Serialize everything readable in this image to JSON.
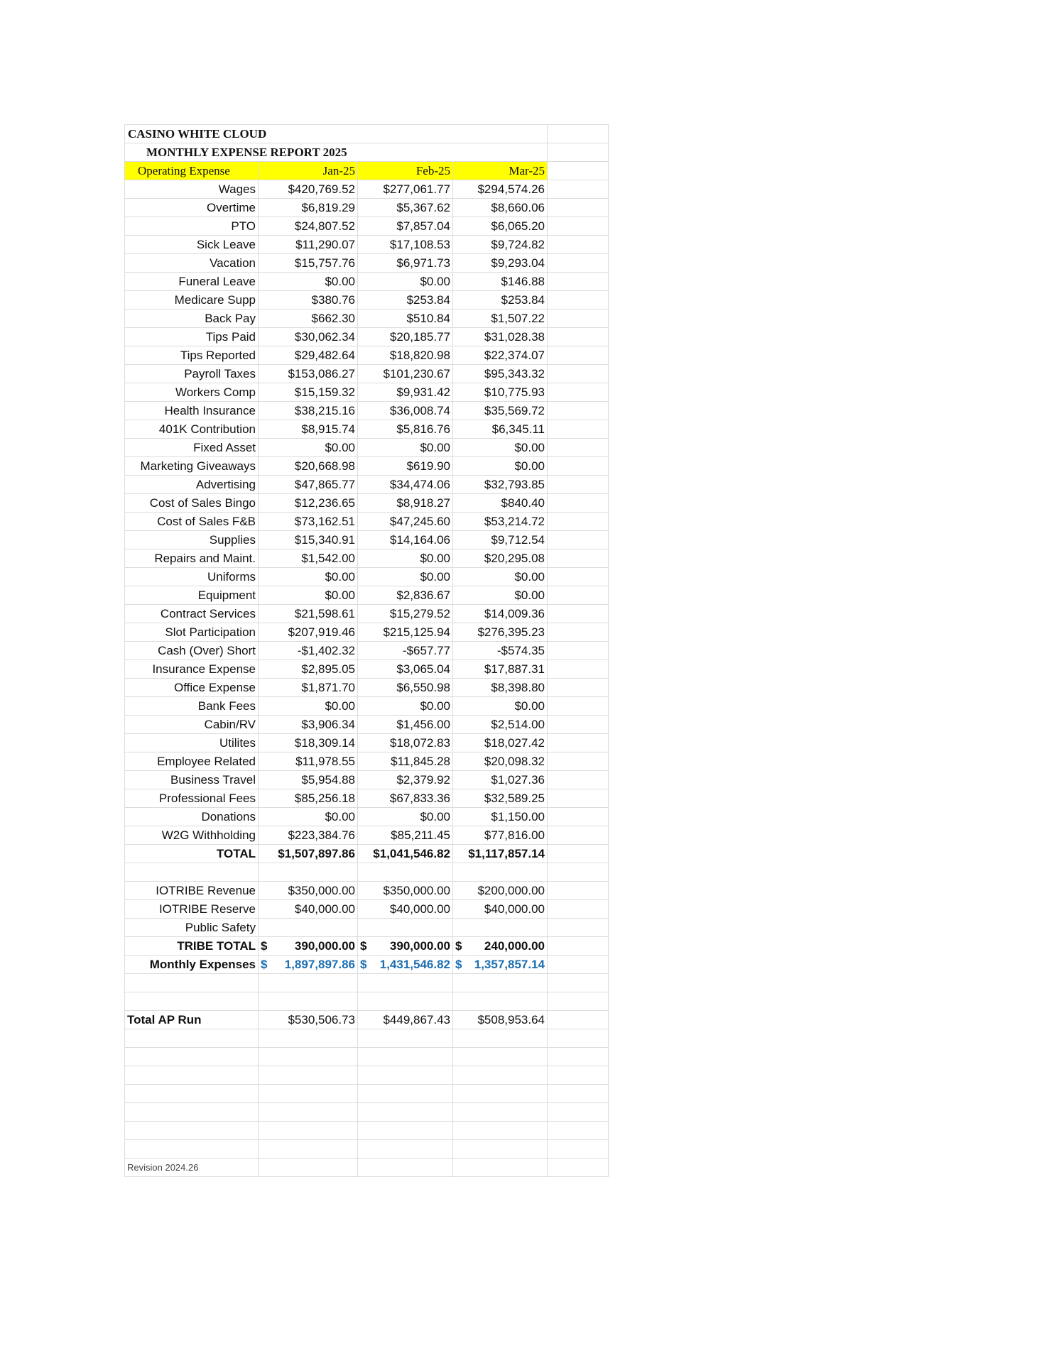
{
  "title": "CASINO WHITE CLOUD",
  "subtitle": "MONTHLY EXPENSE REPORT 2025",
  "header": {
    "label": "Operating Expense",
    "months": [
      "Jan-25",
      "Feb-25",
      "Mar-25"
    ]
  },
  "colors": {
    "header_highlight": "#ffff00",
    "monthly_expenses_text": "#1f6fb0"
  },
  "expenses": [
    {
      "label": "Wages",
      "values": [
        "$420,769.52",
        "$277,061.77",
        "$294,574.26"
      ]
    },
    {
      "label": "Overtime",
      "values": [
        "$6,819.29",
        "$5,367.62",
        "$8,660.06"
      ]
    },
    {
      "label": "PTO",
      "values": [
        "$24,807.52",
        "$7,857.04",
        "$6,065.20"
      ]
    },
    {
      "label": "Sick Leave",
      "values": [
        "$11,290.07",
        "$17,108.53",
        "$9,724.82"
      ]
    },
    {
      "label": "Vacation",
      "values": [
        "$15,757.76",
        "$6,971.73",
        "$9,293.04"
      ]
    },
    {
      "label": "Funeral Leave",
      "values": [
        "$0.00",
        "$0.00",
        "$146.88"
      ]
    },
    {
      "label": "Medicare Supp",
      "values": [
        "$380.76",
        "$253.84",
        "$253.84"
      ]
    },
    {
      "label": "Back Pay",
      "values": [
        "$662.30",
        "$510.84",
        "$1,507.22"
      ]
    },
    {
      "label": "Tips Paid",
      "values": [
        "$30,062.34",
        "$20,185.77",
        "$31,028.38"
      ]
    },
    {
      "label": "Tips Reported",
      "values": [
        "$29,482.64",
        "$18,820.98",
        "$22,374.07"
      ]
    },
    {
      "label": "Payroll Taxes",
      "values": [
        "$153,086.27",
        "$101,230.67",
        "$95,343.32"
      ]
    },
    {
      "label": "Workers Comp",
      "values": [
        "$15,159.32",
        "$9,931.42",
        "$10,775.93"
      ]
    },
    {
      "label": "Health Insurance",
      "values": [
        "$38,215.16",
        "$36,008.74",
        "$35,569.72"
      ]
    },
    {
      "label": "401K Contribution",
      "values": [
        "$8,915.74",
        "$5,816.76",
        "$6,345.11"
      ]
    },
    {
      "label": "Fixed Asset",
      "values": [
        "$0.00",
        "$0.00",
        "$0.00"
      ]
    },
    {
      "label": "Marketing Giveaways",
      "values": [
        "$20,668.98",
        "$619.90",
        "$0.00"
      ]
    },
    {
      "label": "Advertising",
      "values": [
        "$47,865.77",
        "$34,474.06",
        "$32,793.85"
      ]
    },
    {
      "label": "Cost of Sales Bingo",
      "values": [
        "$12,236.65",
        "$8,918.27",
        "$840.40"
      ]
    },
    {
      "label": "Cost of Sales F&B",
      "values": [
        "$73,162.51",
        "$47,245.60",
        "$53,214.72"
      ]
    },
    {
      "label": "Supplies",
      "values": [
        "$15,340.91",
        "$14,164.06",
        "$9,712.54"
      ]
    },
    {
      "label": "Repairs and Maint.",
      "values": [
        "$1,542.00",
        "$0.00",
        "$20,295.08"
      ]
    },
    {
      "label": "Uniforms",
      "values": [
        "$0.00",
        "$0.00",
        "$0.00"
      ]
    },
    {
      "label": "Equipment",
      "values": [
        "$0.00",
        "$2,836.67",
        "$0.00"
      ]
    },
    {
      "label": "Contract Services",
      "values": [
        "$21,598.61",
        "$15,279.52",
        "$14,009.36"
      ]
    },
    {
      "label": "Slot Participation",
      "values": [
        "$207,919.46",
        "$215,125.94",
        "$276,395.23"
      ]
    },
    {
      "label": "Cash (Over) Short",
      "values": [
        "-$1,402.32",
        "-$657.77",
        "-$574.35"
      ]
    },
    {
      "label": "Insurance Expense",
      "values": [
        "$2,895.05",
        "$3,065.04",
        "$17,887.31"
      ]
    },
    {
      "label": "Office Expense",
      "values": [
        "$1,871.70",
        "$6,550.98",
        "$8,398.80"
      ]
    },
    {
      "label": "Bank Fees",
      "values": [
        "$0.00",
        "$0.00",
        "$0.00"
      ]
    },
    {
      "label": "Cabin/RV",
      "values": [
        "$3,906.34",
        "$1,456.00",
        "$2,514.00"
      ]
    },
    {
      "label": "Utilites",
      "values": [
        "$18,309.14",
        "$18,072.83",
        "$18,027.42"
      ]
    },
    {
      "label": "Employee Related",
      "values": [
        "$11,978.55",
        "$11,845.28",
        "$20,098.32"
      ]
    },
    {
      "label": "Business Travel",
      "values": [
        "$5,954.88",
        "$2,379.92",
        "$1,027.36"
      ]
    },
    {
      "label": "Professional Fees",
      "values": [
        "$85,256.18",
        "$67,833.36",
        "$32,589.25"
      ]
    },
    {
      "label": "Donations",
      "values": [
        "$0.00",
        "$0.00",
        "$1,150.00"
      ]
    },
    {
      "label": "W2G Withholding",
      "values": [
        "$223,384.76",
        "$85,211.45",
        "$77,816.00"
      ]
    }
  ],
  "total": {
    "label": "TOTAL",
    "values": [
      "$1,507,897.86",
      "$1,041,546.82",
      "$1,117,857.14"
    ]
  },
  "tribe": [
    {
      "label": "IOTRIBE Revenue",
      "values": [
        "$350,000.00",
        "$350,000.00",
        "$200,000.00"
      ]
    },
    {
      "label": "IOTRIBE Reserve",
      "values": [
        "$40,000.00",
        "$40,000.00",
        "$40,000.00"
      ]
    },
    {
      "label": "Public Safety",
      "values": [
        "",
        "",
        ""
      ]
    }
  ],
  "tribe_total": {
    "label": "TRIBE TOTAL",
    "currency": "$",
    "values": [
      "390,000.00",
      "390,000.00",
      "240,000.00"
    ]
  },
  "monthly_expenses": {
    "label": "Monthly Expenses",
    "currency": "$",
    "values": [
      "1,897,897.86",
      "1,431,546.82",
      "1,357,857.14"
    ]
  },
  "ap_run": {
    "label": "Total AP Run",
    "values": [
      "$530,506.73",
      "$449,867.43",
      "$508,953.64"
    ]
  },
  "revision": "Revision 2024.26"
}
